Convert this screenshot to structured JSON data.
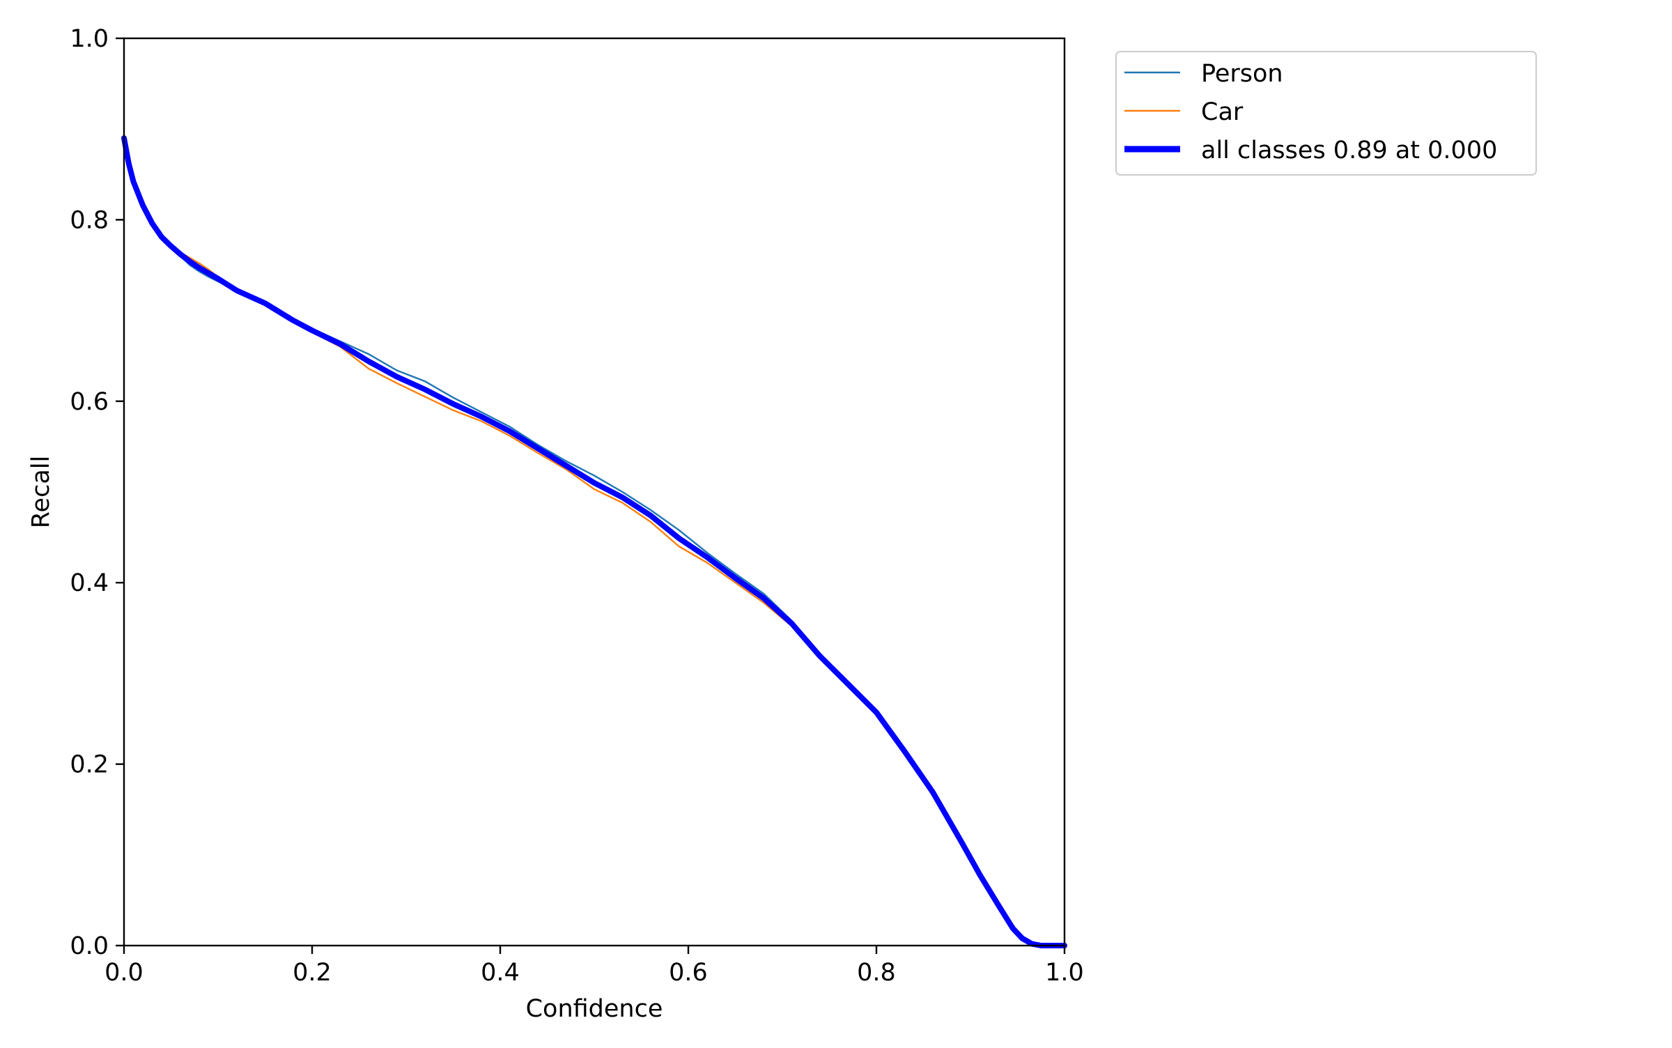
{
  "chart_data": {
    "type": "line",
    "title": "",
    "xlabel": "Confidence",
    "ylabel": "Recall",
    "xlim": [
      0.0,
      1.0
    ],
    "ylim": [
      0.0,
      1.0
    ],
    "xticks": [
      "0.0",
      "0.2",
      "0.4",
      "0.6",
      "0.8",
      "1.0"
    ],
    "yticks": [
      "0.0",
      "0.2",
      "0.4",
      "0.6",
      "0.8",
      "1.0"
    ],
    "grid": false,
    "legend_position": "outside-top-right",
    "series": [
      {
        "name": "Person",
        "color": "#1f77b4",
        "x": [
          0.0,
          0.005,
          0.01,
          0.02,
          0.03,
          0.04,
          0.05,
          0.06,
          0.07,
          0.08,
          0.09,
          0.1,
          0.12,
          0.15,
          0.18,
          0.2,
          0.23,
          0.26,
          0.29,
          0.32,
          0.35,
          0.38,
          0.41,
          0.44,
          0.47,
          0.5,
          0.53,
          0.56,
          0.59,
          0.62,
          0.65,
          0.68,
          0.71,
          0.74,
          0.77,
          0.8,
          0.83,
          0.86,
          0.89,
          0.91,
          0.93,
          0.945,
          0.955,
          0.965,
          0.975,
          0.99,
          1.0
        ],
        "y": [
          0.88,
          0.86,
          0.84,
          0.815,
          0.795,
          0.78,
          0.77,
          0.76,
          0.75,
          0.743,
          0.737,
          0.732,
          0.722,
          0.708,
          0.69,
          0.68,
          0.666,
          0.652,
          0.634,
          0.622,
          0.604,
          0.588,
          0.572,
          0.552,
          0.534,
          0.518,
          0.5,
          0.48,
          0.458,
          0.433,
          0.41,
          0.388,
          0.358,
          0.322,
          0.29,
          0.258,
          0.215,
          0.172,
          0.118,
          0.08,
          0.045,
          0.02,
          0.008,
          0.002,
          0.0,
          0.0,
          0.0
        ]
      },
      {
        "name": "Car",
        "color": "#ff7f0e",
        "x": [
          0.0,
          0.005,
          0.01,
          0.02,
          0.03,
          0.04,
          0.05,
          0.06,
          0.07,
          0.08,
          0.09,
          0.1,
          0.12,
          0.15,
          0.18,
          0.2,
          0.23,
          0.26,
          0.29,
          0.32,
          0.35,
          0.38,
          0.41,
          0.44,
          0.47,
          0.5,
          0.53,
          0.56,
          0.59,
          0.62,
          0.65,
          0.68,
          0.71,
          0.74,
          0.77,
          0.8,
          0.83,
          0.86,
          0.89,
          0.91,
          0.93,
          0.945,
          0.955,
          0.965,
          0.975,
          0.99,
          1.0
        ],
        "y": [
          0.88,
          0.86,
          0.84,
          0.815,
          0.795,
          0.78,
          0.772,
          0.764,
          0.758,
          0.752,
          0.745,
          0.737,
          0.722,
          0.708,
          0.688,
          0.676,
          0.66,
          0.636,
          0.62,
          0.605,
          0.59,
          0.578,
          0.562,
          0.543,
          0.525,
          0.503,
          0.488,
          0.467,
          0.44,
          0.422,
          0.4,
          0.378,
          0.352,
          0.316,
          0.286,
          0.255,
          0.212,
          0.165,
          0.112,
          0.076,
          0.042,
          0.018,
          0.007,
          0.002,
          0.0,
          0.0,
          0.0
        ]
      },
      {
        "name": "all classes 0.89 at 0.000",
        "color": "#0000ff",
        "x": [
          0.0,
          0.005,
          0.01,
          0.02,
          0.03,
          0.04,
          0.05,
          0.06,
          0.07,
          0.08,
          0.09,
          0.1,
          0.12,
          0.15,
          0.18,
          0.2,
          0.23,
          0.26,
          0.29,
          0.32,
          0.35,
          0.38,
          0.41,
          0.44,
          0.47,
          0.5,
          0.53,
          0.56,
          0.59,
          0.62,
          0.65,
          0.68,
          0.71,
          0.74,
          0.77,
          0.8,
          0.83,
          0.86,
          0.89,
          0.91,
          0.93,
          0.945,
          0.955,
          0.965,
          0.975,
          0.99,
          1.0
        ],
        "y": [
          0.89,
          0.862,
          0.842,
          0.816,
          0.796,
          0.781,
          0.771,
          0.762,
          0.754,
          0.747,
          0.741,
          0.735,
          0.722,
          0.708,
          0.689,
          0.678,
          0.663,
          0.644,
          0.627,
          0.613,
          0.597,
          0.583,
          0.567,
          0.548,
          0.529,
          0.51,
          0.494,
          0.474,
          0.449,
          0.428,
          0.405,
          0.383,
          0.355,
          0.319,
          0.288,
          0.257,
          0.214,
          0.169,
          0.115,
          0.078,
          0.044,
          0.019,
          0.008,
          0.002,
          0.0,
          0.0,
          0.0
        ]
      }
    ]
  }
}
